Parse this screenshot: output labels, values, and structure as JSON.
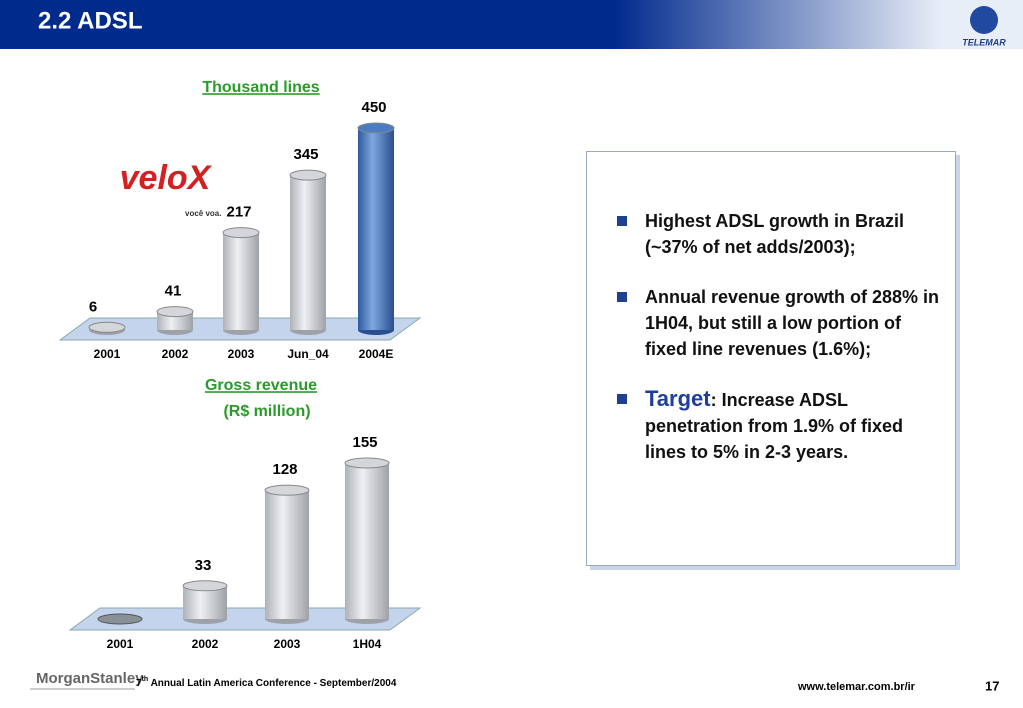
{
  "header": {
    "title": "2.2 ADSL",
    "logo": "TELEMAR"
  },
  "logo": {
    "brand": "veloX",
    "tagline": "você voa."
  },
  "chart_data": [
    {
      "type": "bar",
      "title": "Thousand lines",
      "categories": [
        "2001",
        "2002",
        "2003",
        "Jun_04",
        "2004E"
      ],
      "values": [
        6,
        41,
        217,
        345,
        450
      ],
      "colors": [
        "#d4d6da",
        "#d4d6da",
        "#d4d6da",
        "#d4d6da",
        "#4a7cc4"
      ]
    },
    {
      "type": "bar",
      "title": "Gross revenue",
      "subtitle": "(R$ million)",
      "categories": [
        "2001",
        "2002",
        "2003",
        "1H04"
      ],
      "values": [
        null,
        33,
        128,
        155
      ],
      "colors": [
        "#d4d6da",
        "#d4d6da",
        "#d4d6da",
        "#d4d6da"
      ]
    }
  ],
  "bullets": [
    {
      "text": "Highest ADSL growth in Brazil (~37% of net adds/2003);"
    },
    {
      "text": "Annual revenue growth of 288% in 1H04, but still a low portion of fixed line revenues (1.6%);"
    },
    {
      "keyword": "Target",
      "text": ": Increase ADSL penetration from 1.9% of fixed lines to 5% in 2-3 years."
    }
  ],
  "footer": {
    "brand": "MorganStanley",
    "conference_number": "7",
    "conference_suffix": "th",
    "conference": " Annual Latin America Conference -  September/2004",
    "url": "www.telemar.com.br/ir",
    "page": "17"
  }
}
